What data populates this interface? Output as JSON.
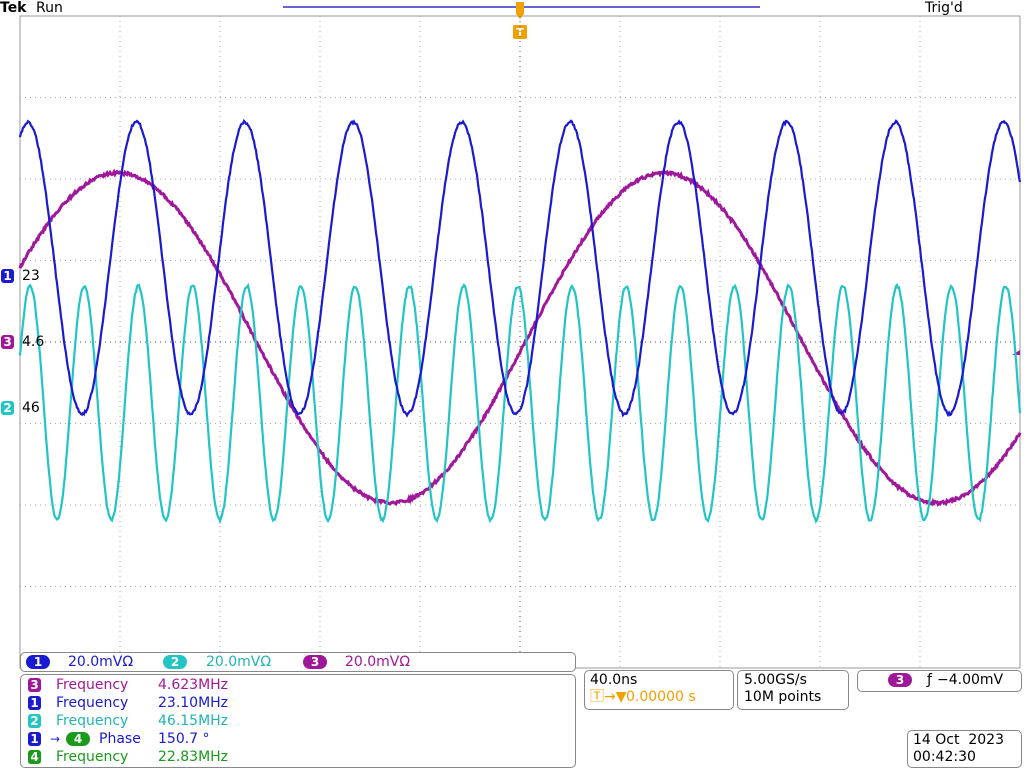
{
  "header": {
    "brand": "Tek",
    "state": "Run",
    "trigger_status": "Trig'd"
  },
  "markers": [
    {
      "channel": "1",
      "label": "23"
    },
    {
      "channel": "3",
      "label": "4.6"
    },
    {
      "channel": "2",
      "label": "46"
    }
  ],
  "channels": [
    {
      "channel": "1",
      "scale": "20.0mVΩ"
    },
    {
      "channel": "2",
      "scale": "20.0mVΩ"
    },
    {
      "channel": "3",
      "scale": "20.0mVΩ"
    }
  ],
  "measurements": [
    {
      "channel": "3",
      "name": "Frequency",
      "value": "4.623MHz"
    },
    {
      "channel": "1",
      "name": "Frequency",
      "value": "23.10MHz"
    },
    {
      "channel": "2",
      "name": "Frequency",
      "value": "46.15MHz"
    },
    {
      "channel": "1",
      "to": "4",
      "name": "Phase",
      "value": "150.7 °"
    },
    {
      "channel": "4",
      "name": "Frequency",
      "value": "22.83MHz"
    }
  ],
  "timebase": {
    "scale": "40.0ns",
    "position": "0.00000 s"
  },
  "acquisition": {
    "rate": "5.00GS/s",
    "points": "10M points"
  },
  "trigger": {
    "source": "3",
    "level": "−4.00mV"
  },
  "date": "14 Oct  2023",
  "time": "00:42:30"
}
